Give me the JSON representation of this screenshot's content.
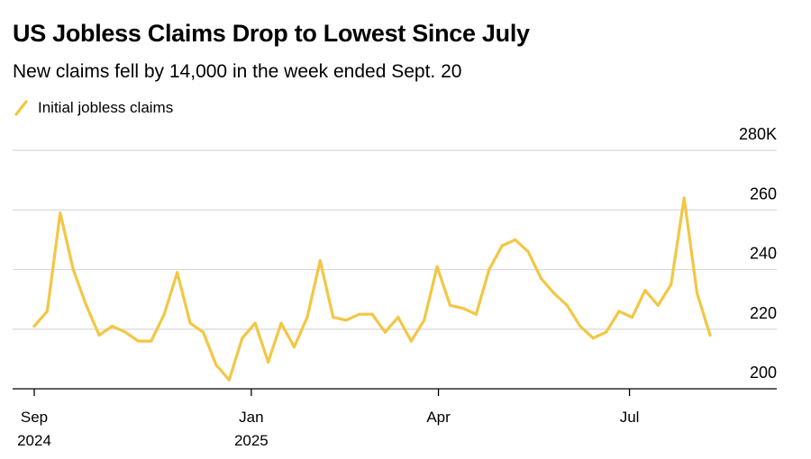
{
  "chart_data": {
    "type": "line",
    "title": "US Jobless Claims Drop to Lowest Since July",
    "subtitle": "New claims fell by 14,000 in the week ended Sept. 20",
    "series": [
      {
        "name": "Initial jobless claims",
        "color": "#f2c744",
        "values": [
          221,
          226,
          259,
          240,
          228,
          218,
          221,
          219,
          216,
          216,
          225,
          239,
          222,
          219,
          208,
          203,
          217,
          222,
          209,
          222,
          214,
          224,
          243,
          224,
          223,
          225,
          225,
          219,
          224,
          216,
          223,
          241,
          228,
          227,
          225,
          240,
          248,
          250,
          246,
          237,
          232,
          228,
          221,
          217,
          219,
          226,
          224,
          233,
          228,
          235,
          264,
          232,
          218
        ]
      }
    ],
    "ylim": [
      200,
      280
    ],
    "yticks": [
      {
        "value": 200,
        "label": "200"
      },
      {
        "value": 220,
        "label": "220"
      },
      {
        "value": 240,
        "label": "240"
      },
      {
        "value": 260,
        "label": "260"
      },
      {
        "value": 280,
        "label": "280K"
      }
    ],
    "xticks": [
      {
        "index": 0,
        "line1": "Sep",
        "line2": "2024"
      },
      {
        "index": 16.7,
        "line1": "Jan",
        "line2": "2025"
      },
      {
        "index": 31.1,
        "line1": "Apr",
        "line2": ""
      },
      {
        "index": 45.8,
        "line1": "Jul",
        "line2": ""
      }
    ],
    "xlabel": "",
    "ylabel": ""
  }
}
